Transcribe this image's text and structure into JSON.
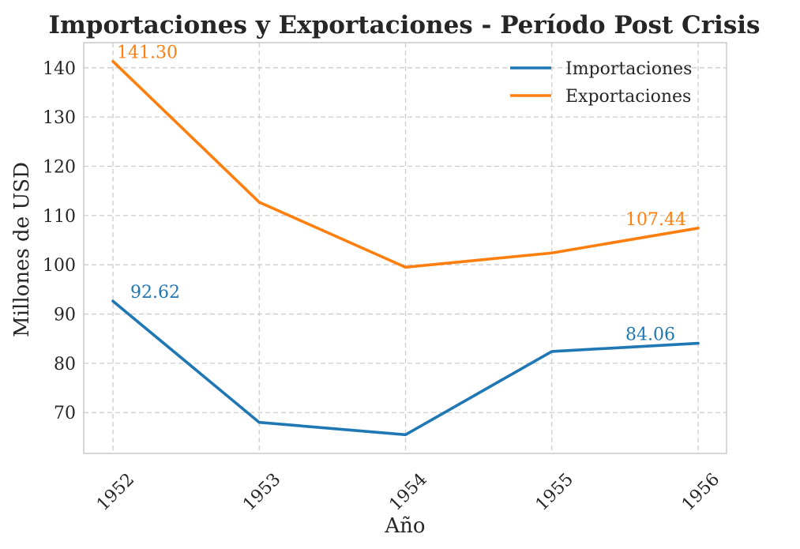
{
  "chart_data": {
    "type": "line",
    "title": "Importaciones y Exportaciones - Período Post Crisis",
    "xlabel": "Año",
    "ylabel": "Millones de USD",
    "x": [
      "1952",
      "1953",
      "1954",
      "1955",
      "1956"
    ],
    "ylim": [
      61.7,
      145.1
    ],
    "yticks": [
      70,
      80,
      90,
      100,
      110,
      120,
      130,
      140
    ],
    "grid": true,
    "legend_position": "top-right",
    "series": [
      {
        "name": "Importaciones",
        "color": "#1f77b4",
        "values": [
          92.62,
          68.0,
          65.5,
          82.4,
          84.06
        ],
        "labels": [
          {
            "index": 0,
            "text": "92.62"
          },
          {
            "index": 4,
            "text": "84.06"
          }
        ]
      },
      {
        "name": "Exportaciones",
        "color": "#ff7f0e",
        "values": [
          141.3,
          112.7,
          99.5,
          102.4,
          107.44
        ],
        "labels": [
          {
            "index": 0,
            "text": "141.30"
          },
          {
            "index": 4,
            "text": "107.44"
          }
        ]
      }
    ]
  }
}
